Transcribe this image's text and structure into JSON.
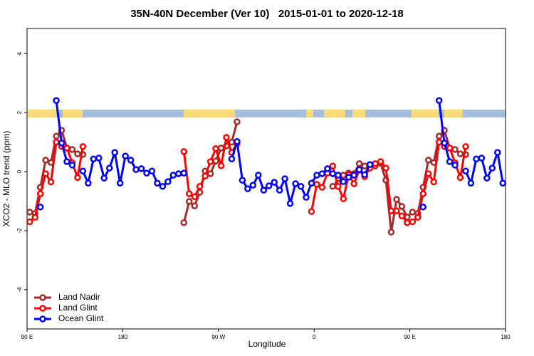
{
  "chart_data": {
    "type": "line",
    "title": "35N-40N December (Ver 10)   2015-01-01 to 2020-12-18",
    "x_label": "Longitude",
    "y_label": "XCO2 - MLO trend (ppm)",
    "xlim": [
      90,
      540
    ],
    "ylim": [
      -5.33,
      4.85
    ],
    "xticks": [
      {
        "value": 90,
        "label": "90 E"
      },
      180,
      {
        "value": 270,
        "label": "90 W"
      },
      {
        "value": 360,
        "label": "0"
      },
      {
        "value": 450,
        "label": "90 E"
      },
      {
        "value": 540,
        "label": "180"
      }
    ],
    "yticks": [
      -4,
      -2,
      0,
      2,
      4
    ],
    "legend": "bottom-left",
    "x": [
      92.5,
      97.5,
      102.5,
      107.5,
      112.5,
      117.5,
      122.5,
      127.5,
      132.5,
      137.5,
      142.5,
      147.5,
      152.5,
      157.5,
      162.5,
      167.5,
      172.5,
      177.5,
      182.5,
      187.5,
      192.5,
      197.5,
      202.5,
      207.5,
      212.5,
      217.5,
      222.5,
      227.5,
      232.5,
      237.5,
      242.5,
      247.5,
      252.5,
      257.5,
      262.5,
      267.5,
      272.5,
      277.5,
      282.5,
      287.5,
      292.5,
      297.5,
      302.5,
      307.5,
      312.5,
      317.5,
      322.5,
      327.5,
      332.5,
      337.5,
      342.5,
      347.5,
      352.5,
      357.5,
      362.5,
      367.5,
      372.5,
      377.5,
      382.5,
      387.5,
      392.5,
      397.5,
      402.5,
      407.5,
      412.5,
      417.5,
      422.5,
      427.5,
      432.5,
      437.5,
      442.5,
      447.5,
      452.5,
      457.5,
      462.5,
      467.5,
      472.5,
      477.5,
      482.5,
      487.5,
      492.5,
      497.5,
      502.5,
      507.5,
      512.5,
      517.5,
      522.5,
      527.5,
      532.5,
      537.5
    ],
    "series": [
      {
        "name": "Land Nadir",
        "color": "#a52a2a",
        "values": [
          -1.37,
          -1.42,
          -0.53,
          0.39,
          0.31,
          1.2,
          1.4,
          0.8,
          0.75,
          0.6,
          0.58,
          null,
          null,
          null,
          null,
          null,
          null,
          null,
          null,
          null,
          null,
          null,
          null,
          null,
          null,
          null,
          null,
          null,
          null,
          -1.73,
          -1.01,
          -1.16,
          -0.7,
          0.02,
          -0.07,
          0.36,
          0.8,
          0.87,
          1.0,
          1.69,
          null,
          null,
          null,
          null,
          null,
          null,
          null,
          null,
          null,
          null,
          null,
          null,
          null,
          null,
          null,
          null,
          null,
          -0.5,
          -0.39,
          -0.12,
          -0.05,
          -0.07,
          0.27,
          0.19,
          0.24,
          0.19,
          0.29,
          -0.29,
          -2.05,
          -0.94,
          -1.18,
          -1.54,
          -1.37,
          -1.42,
          -0.53,
          0.39,
          0.31,
          1.2,
          1.4,
          0.8,
          0.75,
          0.6,
          0.58,
          null,
          null,
          null,
          null,
          null,
          null,
          null
        ]
      },
      {
        "name": "Land Glint",
        "color": "#ff0000",
        "values": [
          -1.7,
          -1.55,
          -0.75,
          -0.07,
          -0.35,
          1.0,
          0.85,
          0.8,
          0.3,
          -0.2,
          0.85,
          null,
          null,
          null,
          null,
          null,
          null,
          null,
          null,
          null,
          null,
          null,
          null,
          null,
          null,
          null,
          null,
          null,
          null,
          0.68,
          -0.75,
          -0.85,
          -0.5,
          -0.15,
          0.34,
          0.78,
          0.2,
          1.16,
          0.65,
          0.95,
          null,
          null,
          null,
          null,
          null,
          null,
          null,
          null,
          null,
          null,
          null,
          null,
          null,
          -1.35,
          -0.43,
          -0.53,
          -0.05,
          0.19,
          -0.5,
          -0.92,
          -0.1,
          -0.41,
          0.05,
          -0.17,
          0.12,
          0.27,
          0.34,
          0.12,
          -1.33,
          -1.33,
          -1.5,
          -1.73,
          -1.7,
          -1.55,
          -0.75,
          -0.07,
          -0.35,
          1.0,
          0.85,
          0.8,
          0.3,
          -0.2,
          0.85,
          null,
          null,
          null,
          null,
          null,
          null,
          null
        ]
      },
      {
        "name": "Ocean Glint",
        "color": "#0000ff",
        "values": [
          null,
          null,
          -1.2,
          null,
          null,
          2.41,
          0.97,
          0.34,
          0.22,
          null,
          0.02,
          -0.39,
          0.43,
          0.46,
          -0.22,
          0.12,
          0.65,
          -0.39,
          0.53,
          0.39,
          0.07,
          0.1,
          -0.05,
          0.02,
          -0.39,
          -0.5,
          -0.34,
          -0.12,
          -0.07,
          -0.05,
          null,
          null,
          null,
          null,
          null,
          null,
          null,
          null,
          0.43,
          1.02,
          -0.29,
          -0.58,
          -0.46,
          -0.12,
          -0.63,
          -0.48,
          -0.36,
          -0.63,
          -0.24,
          -1.08,
          -0.41,
          -0.5,
          -0.87,
          -0.39,
          -0.12,
          -0.07,
          0.1,
          -0.07,
          -0.12,
          -0.34,
          -0.19,
          -0.12,
          0.07,
          -0.1,
          0.24,
          null,
          null,
          null,
          null,
          null,
          null,
          null,
          null,
          null,
          -1.2,
          null,
          null,
          2.41,
          0.97,
          0.34,
          0.22,
          null,
          0.02,
          -0.39,
          0.43,
          0.46,
          -0.22,
          0.12,
          0.65,
          -0.39
        ]
      }
    ]
  }
}
